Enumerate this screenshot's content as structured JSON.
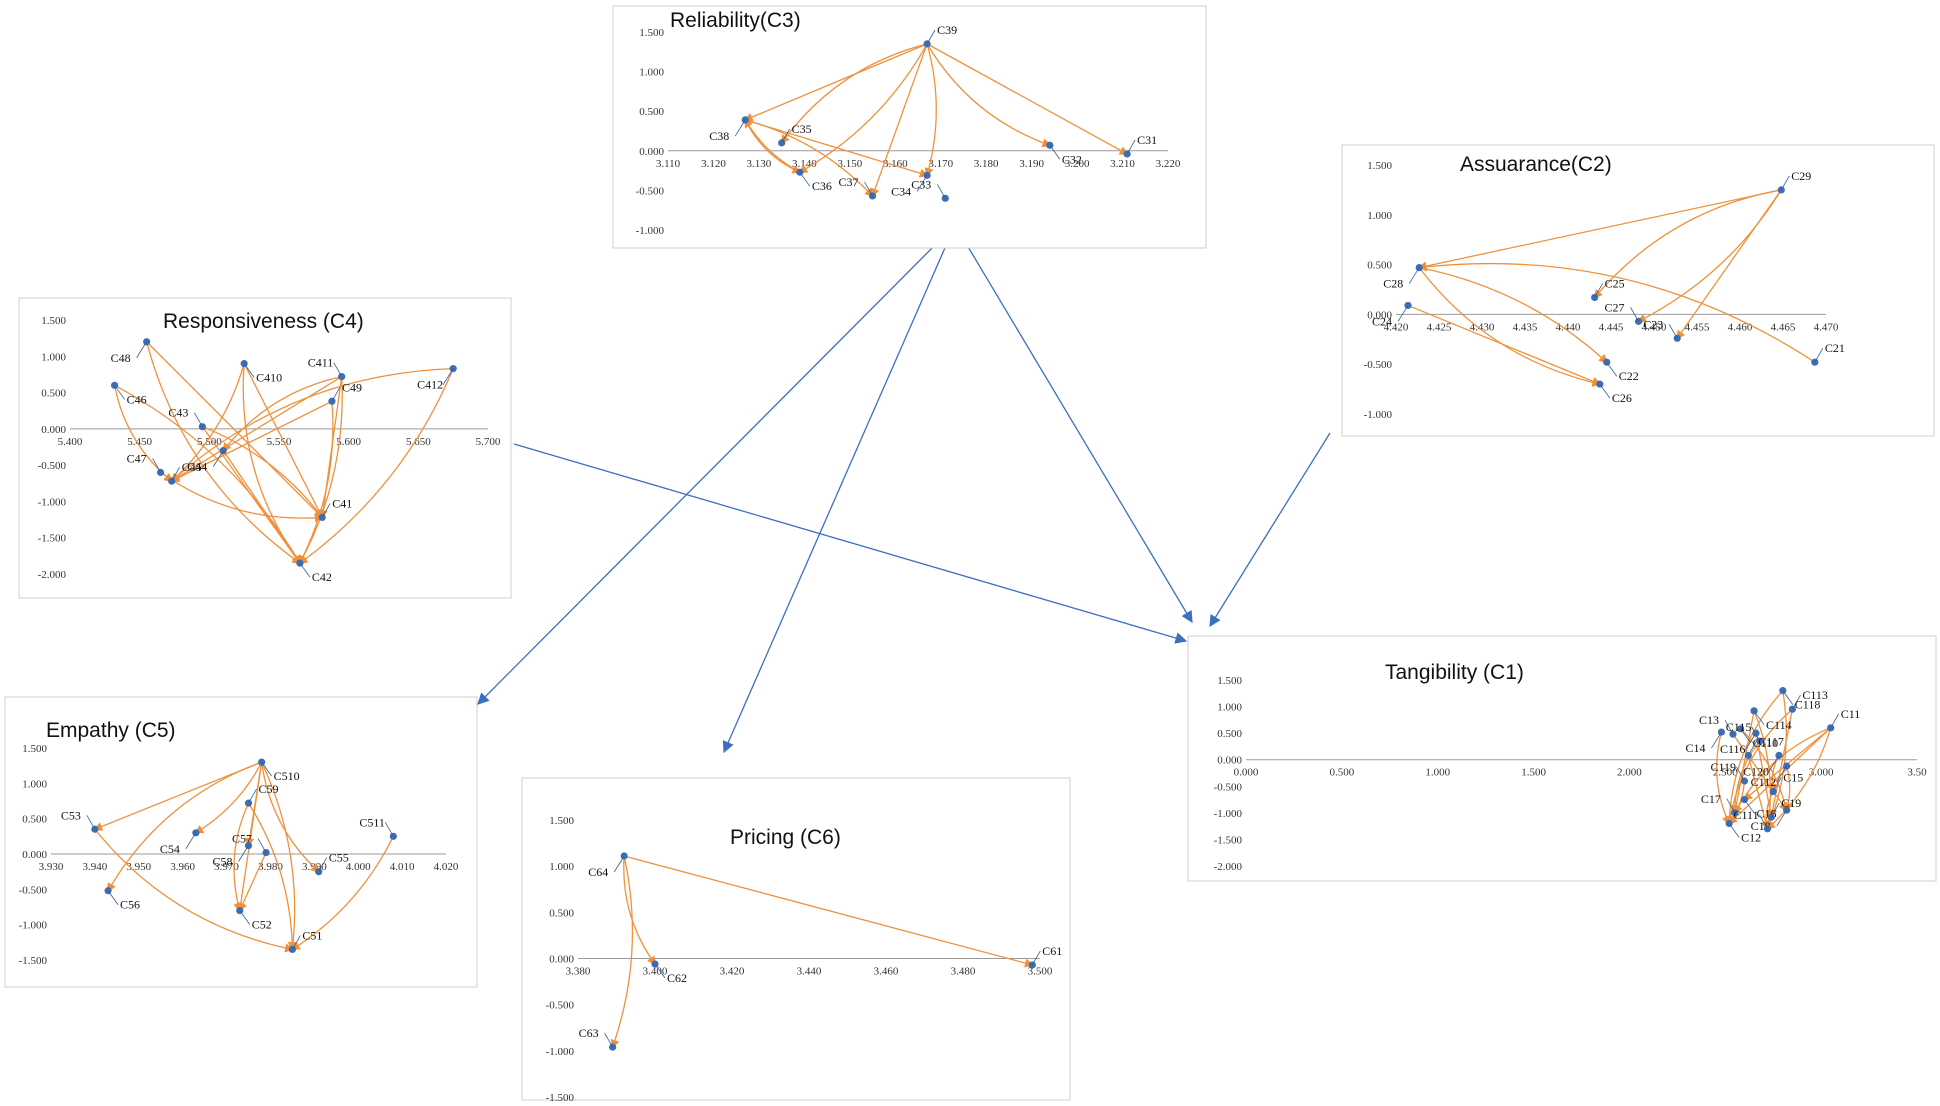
{
  "colors": {
    "point": "#3e6db5",
    "relation": "#f0913a",
    "link": "#3b6fc0",
    "axis": "#9a9a9a"
  },
  "chart_data": [
    {
      "id": "C3",
      "type": "scatter",
      "title": "Reliability(C3)",
      "xlim": [
        3.11,
        3.22
      ],
      "ylim": [
        -1.0,
        1.5
      ],
      "xticks": [
        3.11,
        3.12,
        3.13,
        3.14,
        3.15,
        3.16,
        3.17,
        3.18,
        3.19,
        3.2,
        3.21,
        3.22
      ],
      "yticks": [
        -1.0,
        -0.5,
        0.0,
        0.5,
        1.0,
        1.5
      ],
      "xtick_labels": [
        "3.110",
        "3.120",
        "3.130",
        "3.140",
        "3.150",
        "3.160",
        "3.170",
        "3.180",
        "3.190",
        "3.200",
        "3.210",
        "3.220"
      ],
      "ytick_labels": [
        "-1.000",
        "-0.500",
        "0.000",
        "0.500",
        "1.000",
        "1.500"
      ],
      "points": [
        {
          "label": "C31",
          "x": 3.211,
          "y": -0.04
        },
        {
          "label": "C32",
          "x": 3.194,
          "y": 0.07
        },
        {
          "label": "C33",
          "x": 3.171,
          "y": -0.6
        },
        {
          "label": "C34",
          "x": 3.167,
          "y": -0.31
        },
        {
          "label": "C35",
          "x": 3.135,
          "y": 0.1
        },
        {
          "label": "C36",
          "x": 3.139,
          "y": -0.27
        },
        {
          "label": "C37",
          "x": 3.155,
          "y": -0.57
        },
        {
          "label": "C38",
          "x": 3.127,
          "y": 0.39
        },
        {
          "label": "C39",
          "x": 3.167,
          "y": 1.35
        }
      ],
      "relations": [
        [
          "C39",
          "C38"
        ],
        [
          "C39",
          "C35"
        ],
        [
          "C39",
          "C36"
        ],
        [
          "C39",
          "C37"
        ],
        [
          "C39",
          "C34"
        ],
        [
          "C39",
          "C32"
        ],
        [
          "C39",
          "C31"
        ],
        [
          "C38",
          "C36"
        ],
        [
          "C38",
          "C37"
        ],
        [
          "C38",
          "C34"
        ],
        [
          "C36",
          "C38"
        ]
      ]
    },
    {
      "id": "C2",
      "type": "scatter",
      "title": "Assuarance(C2)",
      "xlim": [
        4.42,
        4.47
      ],
      "ylim": [
        -1.0,
        1.5
      ],
      "xticks": [
        4.42,
        4.425,
        4.43,
        4.435,
        4.44,
        4.445,
        4.45,
        4.455,
        4.46,
        4.465,
        4.47
      ],
      "yticks": [
        -1.0,
        -0.5,
        0.0,
        0.5,
        1.0,
        1.5
      ],
      "xtick_labels": [
        "4.420",
        "4.425",
        "4.430",
        "4.435",
        "4.440",
        "4.445",
        "4.450",
        "4.455",
        "4.460",
        "4.465",
        "4.470"
      ],
      "ytick_labels": [
        "-1.000",
        "-0.500",
        "0.000",
        "0.500",
        "1.000",
        "1.500"
      ],
      "points": [
        {
          "label": "C21",
          "x": 4.4687,
          "y": -0.48
        },
        {
          "label": "C22",
          "x": 4.4445,
          "y": -0.48
        },
        {
          "label": "C23",
          "x": 4.4527,
          "y": -0.24
        },
        {
          "label": "C24",
          "x": 4.4214,
          "y": 0.09
        },
        {
          "label": "C25",
          "x": 4.4431,
          "y": 0.17
        },
        {
          "label": "C26",
          "x": 4.4437,
          "y": -0.7
        },
        {
          "label": "C27",
          "x": 4.4482,
          "y": -0.07
        },
        {
          "label": "C28",
          "x": 4.4227,
          "y": 0.47
        },
        {
          "label": "C29",
          "x": 4.4648,
          "y": 1.25
        }
      ],
      "relations": [
        [
          "C29",
          "C28"
        ],
        [
          "C29",
          "C25"
        ],
        [
          "C29",
          "C27"
        ],
        [
          "C29",
          "C23"
        ],
        [
          "C28",
          "C22"
        ],
        [
          "C28",
          "C26"
        ],
        [
          "C24",
          "C26"
        ],
        [
          "C21",
          "C28"
        ]
      ]
    },
    {
      "id": "C4",
      "type": "scatter",
      "title": "Responsiveness (C4)",
      "xlim": [
        5.4,
        5.7
      ],
      "ylim": [
        -2.0,
        1.5
      ],
      "xticks": [
        5.4,
        5.45,
        5.5,
        5.55,
        5.6,
        5.65,
        5.7
      ],
      "yticks": [
        -2.0,
        -1.5,
        -1.0,
        -0.5,
        0.0,
        0.5,
        1.0,
        1.5
      ],
      "xtick_labels": [
        "5.400",
        "5.450",
        "5.500",
        "5.550",
        "5.600",
        "5.650",
        "5.700"
      ],
      "ytick_labels": [
        "-2.000",
        "-1.500",
        "-1.000",
        "-0.500",
        "0.000",
        "0.500",
        "1.000",
        "1.500"
      ],
      "points": [
        {
          "label": "C41",
          "x": 5.581,
          "y": -1.22
        },
        {
          "label": "C42",
          "x": 5.565,
          "y": -1.85
        },
        {
          "label": "C43",
          "x": 5.495,
          "y": 0.03
        },
        {
          "label": "C44",
          "x": 5.51,
          "y": -0.3
        },
        {
          "label": "C45",
          "x": 5.473,
          "y": -0.72
        },
        {
          "label": "C46",
          "x": 5.432,
          "y": 0.6
        },
        {
          "label": "C47",
          "x": 5.465,
          "y": -0.6
        },
        {
          "label": "C48",
          "x": 5.455,
          "y": 1.2
        },
        {
          "label": "C49",
          "x": 5.588,
          "y": 0.38
        },
        {
          "label": "C410",
          "x": 5.525,
          "y": 0.9
        },
        {
          "label": "C411",
          "x": 5.595,
          "y": 0.72
        },
        {
          "label": "C412",
          "x": 5.675,
          "y": 0.83
        }
      ],
      "relations": [
        [
          "C411",
          "C45"
        ],
        [
          "C411",
          "C44"
        ],
        [
          "C411",
          "C42"
        ],
        [
          "C411",
          "C41"
        ],
        [
          "C410",
          "C45"
        ],
        [
          "C410",
          "C42"
        ],
        [
          "C410",
          "C41"
        ],
        [
          "C412",
          "C45"
        ],
        [
          "C412",
          "C42"
        ],
        [
          "C49",
          "C45"
        ],
        [
          "C49",
          "C42"
        ],
        [
          "C48",
          "C42"
        ],
        [
          "C48",
          "C41"
        ],
        [
          "C46",
          "C45"
        ],
        [
          "C46",
          "C42"
        ],
        [
          "C43",
          "C42"
        ],
        [
          "C43",
          "C41"
        ],
        [
          "C47",
          "C41"
        ],
        [
          "C44",
          "C42"
        ]
      ]
    },
    {
      "id": "C5",
      "type": "scatter",
      "title": "Empathy (C5)",
      "xlim": [
        3.93,
        4.02
      ],
      "ylim": [
        -1.5,
        1.5
      ],
      "xticks": [
        3.93,
        3.94,
        3.95,
        3.96,
        3.97,
        3.98,
        3.99,
        4.0,
        4.01,
        4.02
      ],
      "yticks": [
        -1.5,
        -1.0,
        -0.5,
        0.0,
        0.5,
        1.0,
        1.5
      ],
      "xtick_labels": [
        "3.930",
        "3.940",
        "3.950",
        "3.960",
        "3.970",
        "3.980",
        "3.990",
        "4.000",
        "4.010",
        "4.020"
      ],
      "ytick_labels": [
        "-1.500",
        "-1.000",
        "-0.500",
        "0.000",
        "0.500",
        "1.000",
        "1.500"
      ],
      "points": [
        {
          "label": "C51",
          "x": 3.985,
          "y": -1.35
        },
        {
          "label": "C52",
          "x": 3.973,
          "y": -0.8
        },
        {
          "label": "C53",
          "x": 3.94,
          "y": 0.35
        },
        {
          "label": "C54",
          "x": 3.963,
          "y": 0.3
        },
        {
          "label": "C55",
          "x": 3.991,
          "y": -0.25
        },
        {
          "label": "C56",
          "x": 3.943,
          "y": -0.52
        },
        {
          "label": "C57",
          "x": 3.979,
          "y": 0.02
        },
        {
          "label": "C58",
          "x": 3.975,
          "y": 0.12
        },
        {
          "label": "C59",
          "x": 3.975,
          "y": 0.72
        },
        {
          "label": "C510",
          "x": 3.978,
          "y": 1.3
        },
        {
          "label": "C511",
          "x": 4.008,
          "y": 0.25
        }
      ],
      "relations": [
        [
          "C510",
          "C53"
        ],
        [
          "C510",
          "C56"
        ],
        [
          "C510",
          "C54"
        ],
        [
          "C510",
          "C52"
        ],
        [
          "C510",
          "C51"
        ],
        [
          "C510",
          "C55"
        ],
        [
          "C510",
          "C58"
        ],
        [
          "C59",
          "C52"
        ],
        [
          "C59",
          "C51"
        ],
        [
          "C57",
          "C52"
        ],
        [
          "C511",
          "C51"
        ],
        [
          "C53",
          "C51"
        ]
      ]
    },
    {
      "id": "C6",
      "type": "scatter",
      "title": "Pricing (C6)",
      "xlim": [
        3.38,
        3.5
      ],
      "ylim": [
        -1.5,
        1.5
      ],
      "xticks": [
        3.38,
        3.4,
        3.42,
        3.44,
        3.46,
        3.48,
        3.5
      ],
      "yticks": [
        -1.5,
        -1.0,
        -0.5,
        0.0,
        0.5,
        1.0,
        1.5
      ],
      "xtick_labels": [
        "3.380",
        "3.400",
        "3.420",
        "3.440",
        "3.460",
        "3.480",
        "3.500"
      ],
      "ytick_labels": [
        "-1.500",
        "-1.000",
        "-0.500",
        "0.000",
        "0.500",
        "1.000",
        "1.500"
      ],
      "points": [
        {
          "label": "C61",
          "x": 3.498,
          "y": -0.07
        },
        {
          "label": "C62",
          "x": 3.4,
          "y": -0.06
        },
        {
          "label": "C63",
          "x": 3.389,
          "y": -0.96
        },
        {
          "label": "C64",
          "x": 3.392,
          "y": 1.11
        }
      ],
      "relations": [
        [
          "C64",
          "C61"
        ],
        [
          "C64",
          "C62"
        ],
        [
          "C64",
          "C63"
        ]
      ]
    },
    {
      "id": "C1",
      "type": "scatter",
      "title": "Tangibility (C1)",
      "xlim": [
        0.0,
        3.5
      ],
      "ylim": [
        -2.0,
        1.5
      ],
      "xticks": [
        0.0,
        0.5,
        1.0,
        1.5,
        2.0,
        2.5,
        3.0,
        3.5
      ],
      "yticks": [
        -2.0,
        -1.5,
        -1.0,
        -0.5,
        0.0,
        0.5,
        1.0,
        1.5
      ],
      "xtick_labels": [
        "0.000",
        "0.500",
        "1.000",
        "1.500",
        "2.000",
        "2.500",
        "3.000",
        "3.50"
      ],
      "ytick_labels": [
        "-2.000",
        "-1.500",
        "-1.000",
        "-0.500",
        "0.000",
        "0.500",
        "1.000",
        "1.500"
      ],
      "points": [
        {
          "label": "C11",
          "x": 3.05,
          "y": 0.6
        },
        {
          "label": "C12",
          "x": 2.52,
          "y": -1.2
        },
        {
          "label": "C13",
          "x": 2.54,
          "y": 0.48
        },
        {
          "label": "C14",
          "x": 2.48,
          "y": 0.52
        },
        {
          "label": "C15",
          "x": 2.75,
          "y": -0.6
        },
        {
          "label": "C16",
          "x": 2.6,
          "y": -0.75
        },
        {
          "label": "C17",
          "x": 2.55,
          "y": -1.0
        },
        {
          "label": "C18",
          "x": 2.82,
          "y": -0.95
        },
        {
          "label": "C19",
          "x": 2.74,
          "y": -1.08
        },
        {
          "label": "C110",
          "x": 2.58,
          "y": 0.58
        },
        {
          "label": "C111",
          "x": 2.72,
          "y": -1.3
        },
        {
          "label": "C112",
          "x": 2.82,
          "y": -0.12
        },
        {
          "label": "C113",
          "x": 2.85,
          "y": 0.95
        },
        {
          "label": "C114",
          "x": 2.65,
          "y": 0.92
        },
        {
          "label": "C115",
          "x": 2.68,
          "y": 0.35
        },
        {
          "label": "C116",
          "x": 2.66,
          "y": 0.5
        },
        {
          "label": "C117",
          "x": 2.62,
          "y": 0.08
        },
        {
          "label": "C118",
          "x": 2.8,
          "y": 1.3
        },
        {
          "label": "C119",
          "x": 2.6,
          "y": -0.4
        },
        {
          "label": "C120",
          "x": 2.78,
          "y": 0.08
        }
      ],
      "relations": [
        [
          "C11",
          "C12"
        ],
        [
          "C11",
          "C17"
        ],
        [
          "C11",
          "C111"
        ],
        [
          "C11",
          "C16"
        ],
        [
          "C118",
          "C111"
        ],
        [
          "C118",
          "C12"
        ],
        [
          "C113",
          "C19"
        ],
        [
          "C113",
          "C12"
        ],
        [
          "C114",
          "C111"
        ],
        [
          "C114",
          "C17"
        ],
        [
          "C110",
          "C18"
        ],
        [
          "C14",
          "C12"
        ],
        [
          "C116",
          "C19"
        ],
        [
          "C120",
          "C15"
        ],
        [
          "C112",
          "C18"
        ],
        [
          "C117",
          "C111"
        ],
        [
          "C119",
          "C12"
        ],
        [
          "C15",
          "C111"
        ],
        [
          "C13",
          "C18"
        ],
        [
          "C115",
          "C17"
        ]
      ]
    }
  ],
  "inter_links": [
    [
      "C3",
      "C1"
    ],
    [
      "C3",
      "C5"
    ],
    [
      "C3",
      "C6"
    ],
    [
      "C2",
      "C1"
    ],
    [
      "C4",
      "C1"
    ]
  ]
}
